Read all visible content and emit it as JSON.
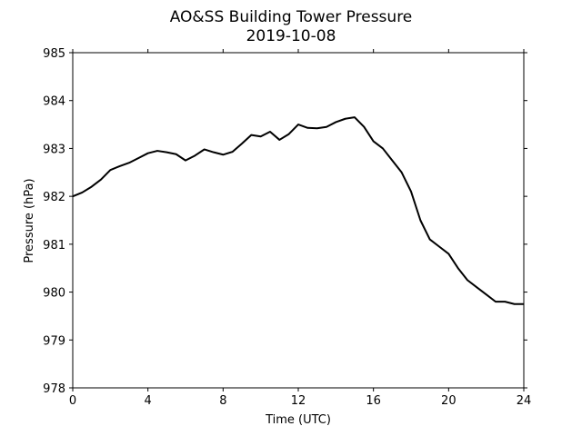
{
  "chart_data": {
    "type": "line",
    "title": "AO&SS Building Tower Pressure",
    "subtitle": "2019-10-08",
    "xlabel": "Time (UTC)",
    "ylabel": "Pressure (hPa)",
    "xlim": [
      0,
      24
    ],
    "ylim": [
      978,
      985
    ],
    "xticks": [
      0,
      4,
      8,
      12,
      16,
      20,
      24
    ],
    "yticks": [
      978,
      979,
      980,
      981,
      982,
      983,
      984,
      985
    ],
    "grid": false,
    "line_color": "#000000",
    "series": [
      {
        "x": [
          0,
          0.5,
          1,
          1.5,
          2,
          2.5,
          3,
          3.5,
          4,
          4.5,
          5,
          5.5,
          6,
          6.5,
          7,
          7.5,
          8,
          8.5,
          9,
          9.5,
          10,
          10.5,
          11,
          11.5,
          12,
          12.5,
          13,
          13.5,
          14,
          14.5,
          15,
          15.5,
          16,
          16.5,
          17,
          17.5,
          18,
          18.5,
          19,
          19.5,
          20,
          20.5,
          21,
          21.5,
          22,
          22.5,
          23,
          23.5,
          24
        ],
        "values": [
          982.0,
          982.08,
          982.2,
          982.35,
          982.55,
          982.63,
          982.7,
          982.8,
          982.9,
          982.95,
          982.92,
          982.88,
          982.75,
          982.85,
          982.98,
          982.92,
          982.87,
          982.93,
          983.1,
          983.28,
          983.25,
          983.35,
          983.18,
          983.3,
          983.5,
          983.43,
          983.42,
          983.45,
          983.55,
          983.62,
          983.65,
          983.45,
          983.15,
          983.0,
          982.75,
          982.5,
          982.1,
          981.5,
          981.1,
          980.95,
          980.8,
          980.5,
          980.25,
          980.1,
          979.95,
          979.8,
          979.8,
          979.75,
          979.75
        ]
      }
    ]
  }
}
